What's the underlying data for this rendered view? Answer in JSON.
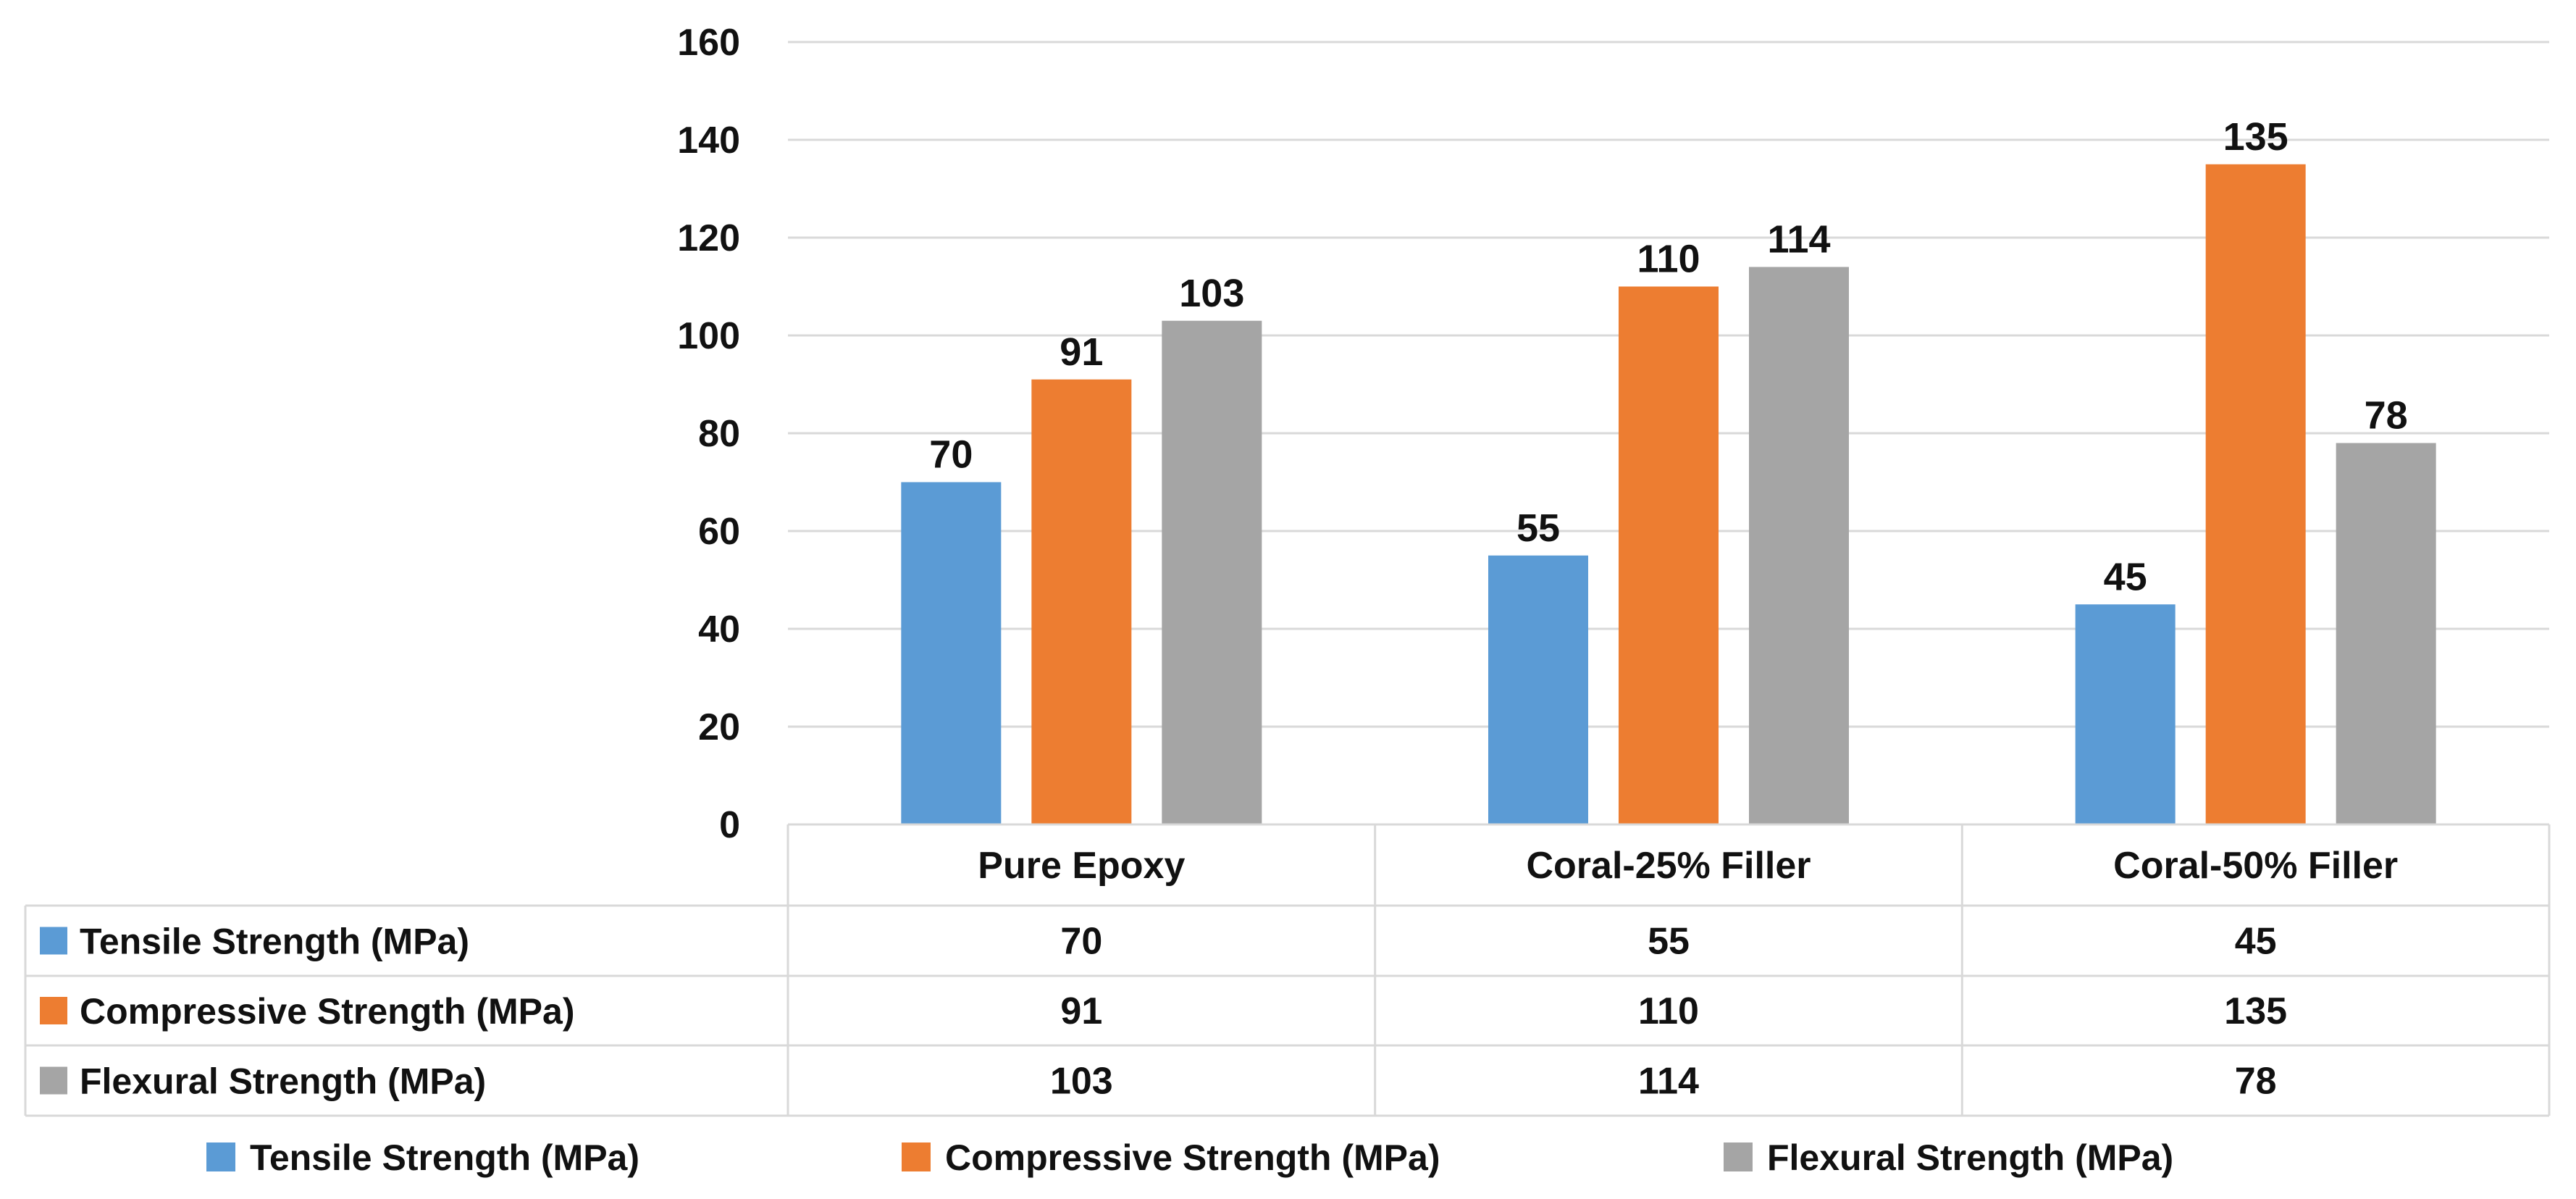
{
  "chart_data": {
    "type": "bar",
    "title": "",
    "xlabel": "",
    "ylabel": "",
    "ylim": [
      0,
      160
    ],
    "yticks": [
      "0",
      "20",
      "40",
      "60",
      "80",
      "100",
      "120",
      "140",
      "160"
    ],
    "grid": true,
    "legend_position": "bottom",
    "categories": [
      "Pure Epoxy",
      "Coral-25% Filler",
      "Coral-50% Filler"
    ],
    "series": [
      {
        "name": "Tensile Strength (MPa)",
        "color": "#5B9BD5",
        "values": [
          70,
          55,
          45
        ]
      },
      {
        "name": "Compressive Strength (MPa)",
        "color": "#ED7D31",
        "values": [
          91,
          110,
          135
        ]
      },
      {
        "name": "Flexural Strength (MPa)",
        "color": "#A5A5A5",
        "values": [
          103,
          114,
          78
        ]
      }
    ],
    "data_table": true
  }
}
